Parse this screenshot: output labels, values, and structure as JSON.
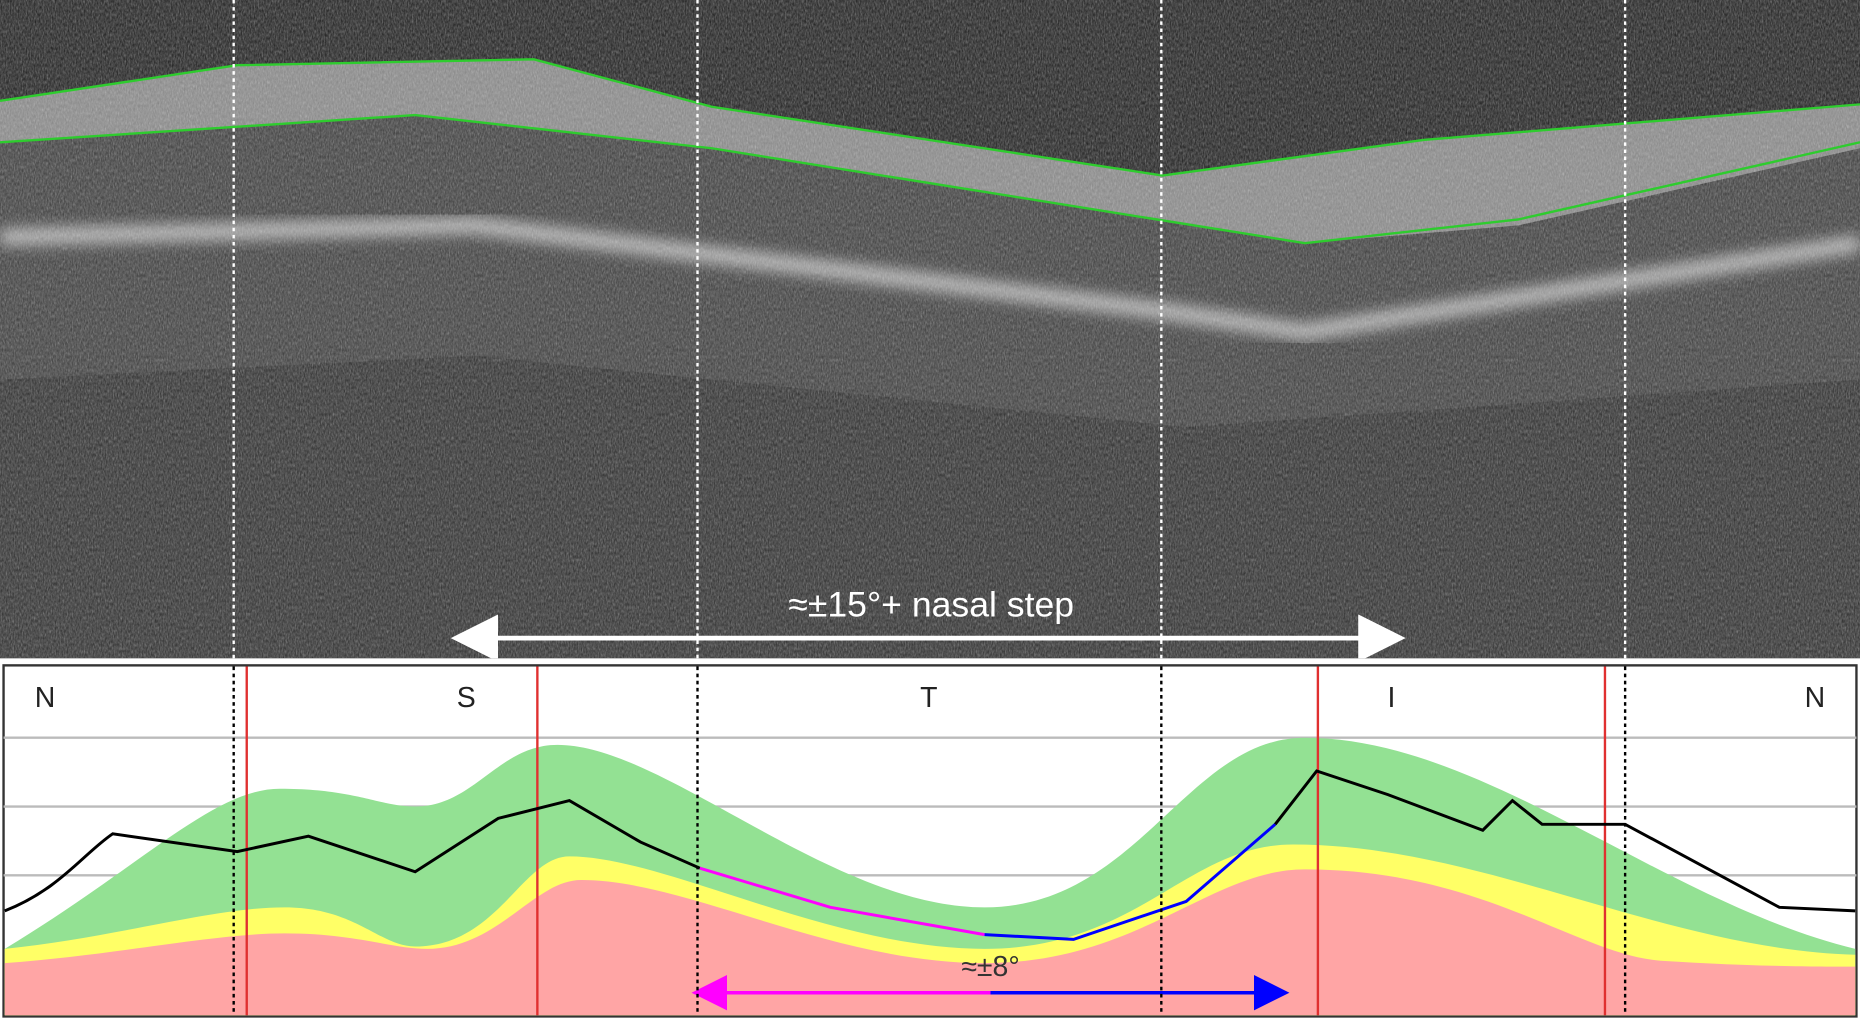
{
  "sectors": {
    "labels": [
      "N",
      "S",
      "T",
      "I",
      "N"
    ]
  },
  "annotations": {
    "wide_range": "≈±15°+ nasal step",
    "narrow_range": "≈±8°"
  }
}
